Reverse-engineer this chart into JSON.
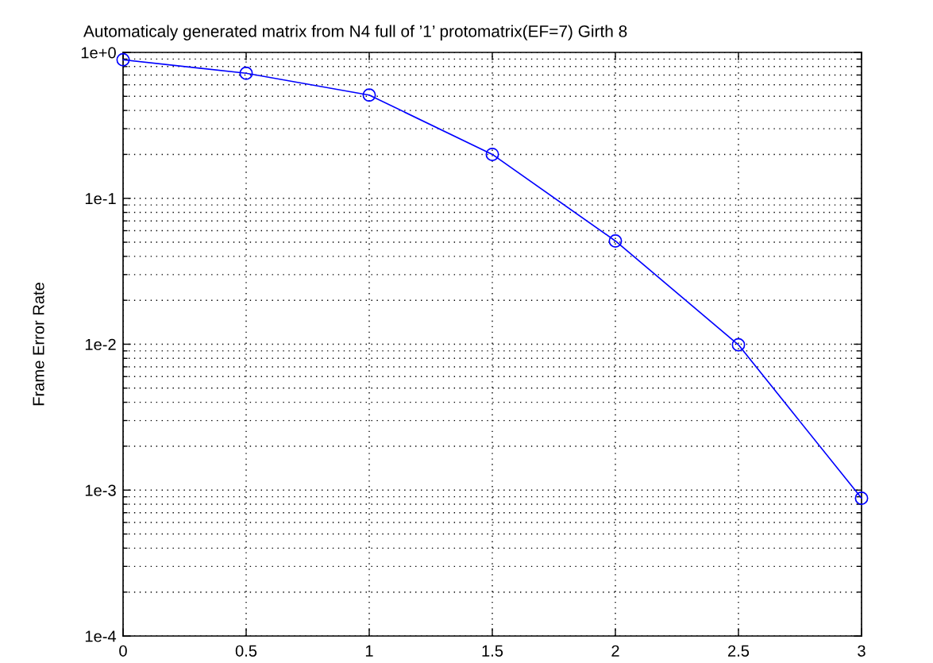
{
  "chart_data": {
    "type": "line",
    "title": "Automaticaly generated matrix from N4 full of ’1’ protomatrix(EF=7) Girth 8",
    "ylabel": "Frame Error Rate",
    "x": [
      0,
      0.5,
      1,
      1.5,
      2,
      2.5,
      3
    ],
    "series": [
      {
        "color": "#0000ff",
        "values": [
          0.89,
          0.72,
          0.51,
          0.2,
          0.051,
          0.0099,
          0.00088
        ]
      }
    ],
    "log": "y",
    "grid": true,
    "marker": "circle",
    "line_style": "solid",
    "xlim": [
      0,
      3
    ],
    "xticks": [
      0,
      0.5,
      1,
      1.5,
      2,
      2.5,
      3
    ],
    "ylim": [
      0.0001,
      1
    ],
    "yticks": [
      {
        "value": 0.0001,
        "label": "1e-4"
      },
      {
        "value": 0.001,
        "label": "1e-3"
      },
      {
        "value": 0.01,
        "label": "1e-2"
      },
      {
        "value": 0.1,
        "label": "1e-1"
      },
      {
        "value": 1,
        "label": "1e+0"
      }
    ]
  }
}
